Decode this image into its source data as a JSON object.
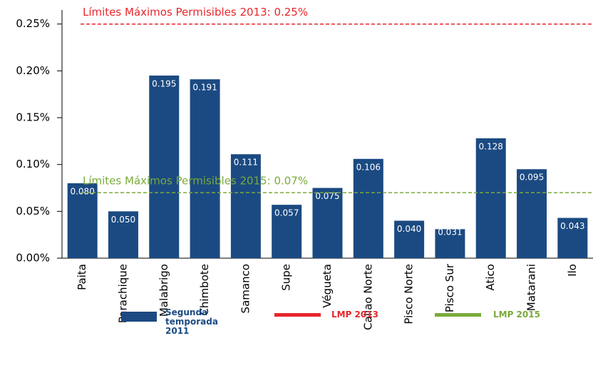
{
  "chart_data": {
    "type": "bar",
    "categories": [
      "Paita",
      "Parachique",
      "Malabrigo",
      "Chimbote",
      "Samanco",
      "Supe",
      "Végueta",
      "Callao Norte",
      "Pisco Norte",
      "Pisco Sur",
      "Atico",
      "Matarani",
      "Ilo"
    ],
    "series": [
      {
        "name": "Segunda temporada 2011",
        "color": "#1b4a82",
        "values": [
          0.08,
          0.05,
          0.195,
          0.191,
          0.111,
          0.057,
          0.075,
          0.106,
          0.04,
          0.031,
          0.128,
          0.095,
          0.043
        ],
        "value_labels": [
          "0.080",
          "0.050",
          "0.195",
          "0.191",
          "0.111",
          "0.057",
          "0.075",
          "0.106",
          "0.040",
          "0.031",
          "0.128",
          "0.095",
          "0.043"
        ]
      }
    ],
    "reference_lines": [
      {
        "name": "LMP 2013",
        "label": "Límites Máximos Permisibles 2013: 0.25%",
        "value": 0.25,
        "color": "#e8262b"
      },
      {
        "name": "LMP 2015",
        "label": "Límites Máximos Permisibles 2015: 0.07%",
        "value": 0.07,
        "color": "#7aaa3a"
      }
    ],
    "ylim": [
      0,
      0.265
    ],
    "yticks": [
      {
        "value": 0,
        "label": "0.00%"
      },
      {
        "value": 0.05,
        "label": "0.05%"
      },
      {
        "value": 0.1,
        "label": "0.10%"
      },
      {
        "value": 0.15,
        "label": "0.15%"
      },
      {
        "value": 0.2,
        "label": "0.20%"
      },
      {
        "value": 0.25,
        "label": "0.25%"
      }
    ]
  }
}
